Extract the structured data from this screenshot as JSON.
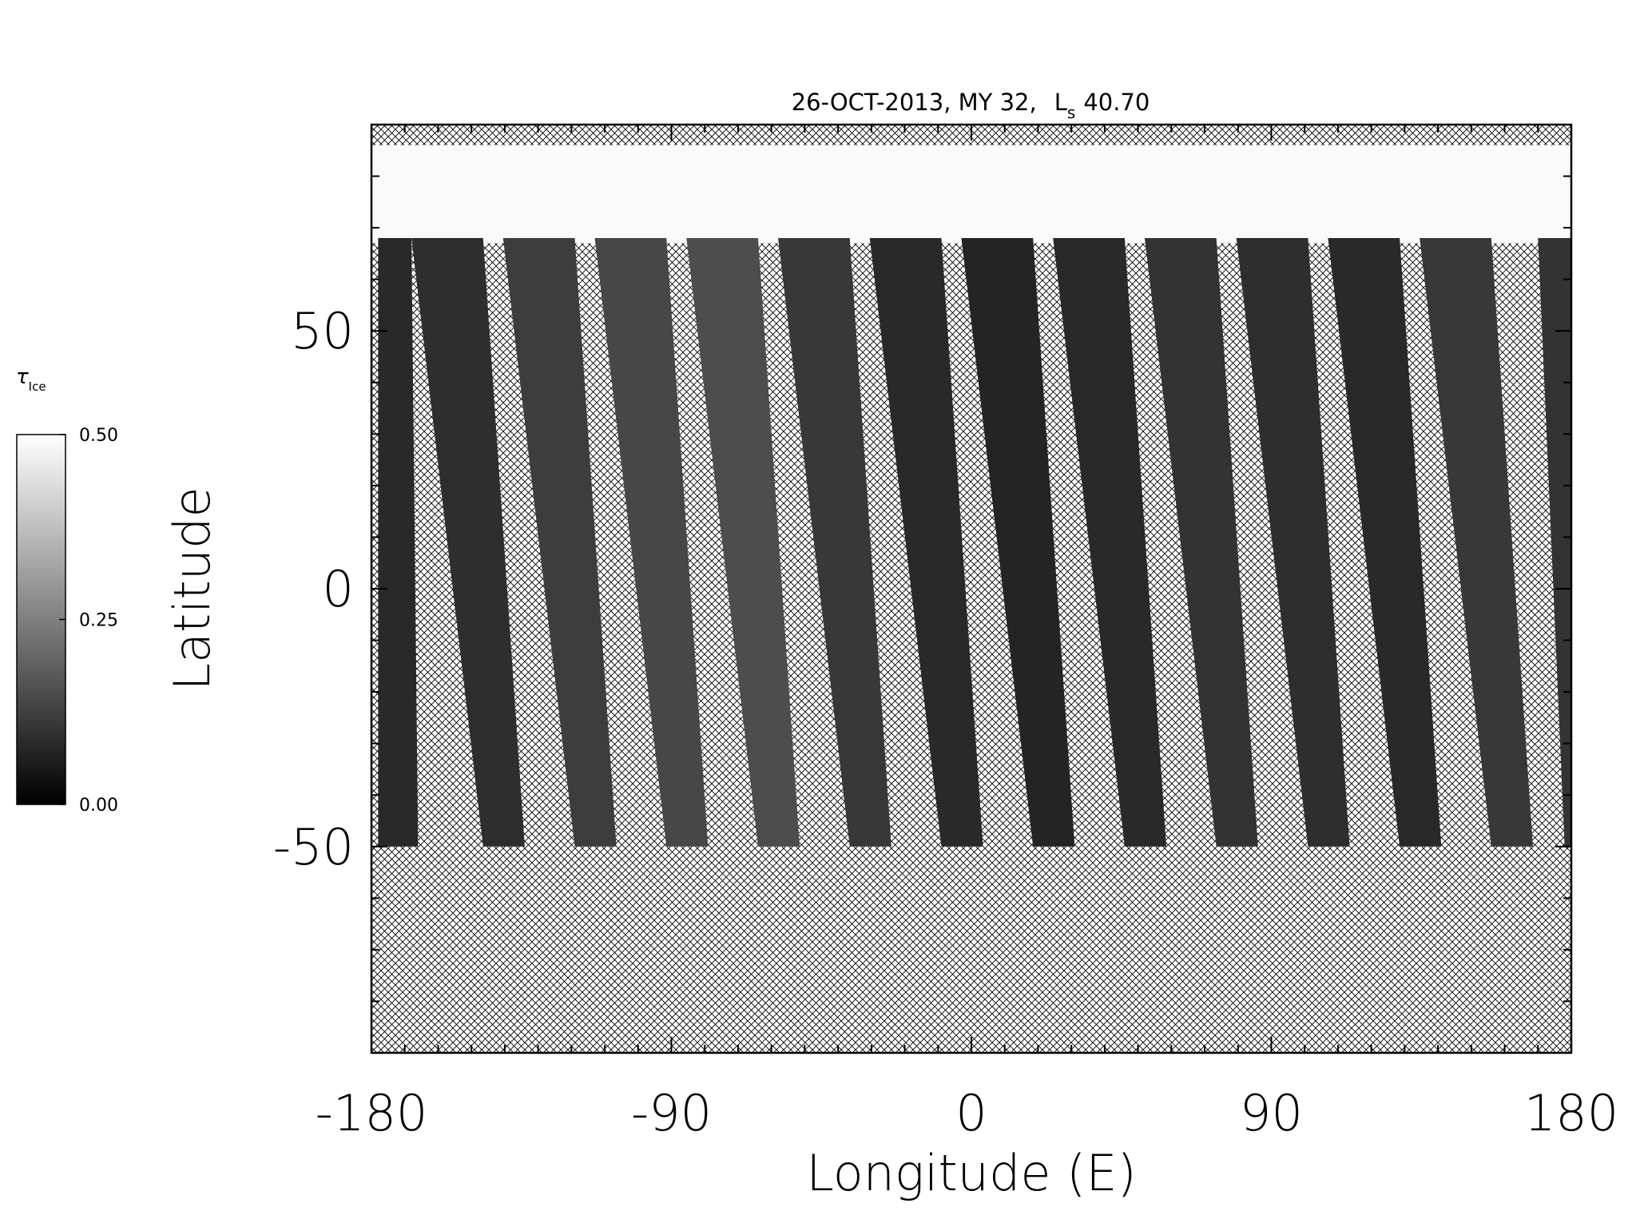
{
  "chart_data": {
    "type": "heatmap",
    "title": "26-OCT-2013, MY 32,",
    "ls": {
      "symbol": "L",
      "subscript": "s",
      "value": "40.70"
    },
    "xlabel": "Longitude (E)",
    "ylabel": "Latitude",
    "xlim": [
      -180,
      180
    ],
    "xticks": [
      -180,
      -90,
      0,
      90,
      180
    ],
    "xminorticks": [
      -170,
      -160,
      -150,
      -140,
      -130,
      -120,
      -110,
      -100,
      -80,
      -70,
      -60,
      -50,
      -40,
      -30,
      -20,
      -10,
      10,
      20,
      30,
      40,
      50,
      60,
      70,
      80,
      100,
      110,
      120,
      130,
      140,
      150,
      160,
      170
    ],
    "ylim": [
      -90,
      90
    ],
    "yticks": [
      -50,
      0,
      50
    ],
    "yminorticks": [
      -80,
      -70,
      -60,
      -40,
      -30,
      -20,
      -10,
      10,
      20,
      30,
      40,
      60,
      70,
      80
    ],
    "no_data_pattern": "crosshatch",
    "colorbar": {
      "symbol": "τ",
      "subscript": "Ice",
      "lim": [
        0,
        0.5
      ],
      "ticks": [
        {
          "value": 0,
          "label": "0.00"
        },
        {
          "value": 0.25,
          "label": "0.25"
        },
        {
          "value": 0.5,
          "label": "0.50"
        }
      ],
      "colors": [
        "#000000",
        "#ffffff"
      ]
    },
    "polar_cap": {
      "lat": [
        67,
        86
      ],
      "tau": 0.49
    },
    "swath_lat": [
      -50,
      68
    ],
    "swaths": [
      {
        "lon_top": [
          -178,
          -168
        ],
        "lon_bottom": [
          -178,
          -166
        ],
        "tau": 0.08
      },
      {
        "lon_top": [
          -168,
          -146.5
        ],
        "lon_bottom": [
          -146.5,
          -134
        ],
        "tau": 0.09
      },
      {
        "lon_top": [
          -140.5,
          -119
        ],
        "lon_bottom": [
          -119,
          -106.5
        ],
        "tau": 0.12
      },
      {
        "lon_top": [
          -113,
          -91.5
        ],
        "lon_bottom": [
          -91.5,
          -79
        ],
        "tau": 0.14
      },
      {
        "lon_top": [
          -85.5,
          -64
        ],
        "lon_bottom": [
          -64,
          -51.5
        ],
        "tau": 0.15
      },
      {
        "lon_top": [
          -58,
          -36.5
        ],
        "lon_bottom": [
          -36.5,
          -24
        ],
        "tau": 0.11
      },
      {
        "lon_top": [
          -30.5,
          -9
        ],
        "lon_bottom": [
          -9,
          3.5
        ],
        "tau": 0.08
      },
      {
        "lon_top": [
          -3,
          18.5
        ],
        "lon_bottom": [
          18.5,
          31
        ],
        "tau": 0.07
      },
      {
        "lon_top": [
          24.5,
          46
        ],
        "lon_bottom": [
          46,
          58.5
        ],
        "tau": 0.08
      },
      {
        "lon_top": [
          52,
          73.5
        ],
        "lon_bottom": [
          73.5,
          86
        ],
        "tau": 0.1
      },
      {
        "lon_top": [
          79.5,
          101
        ],
        "lon_bottom": [
          101,
          113.5
        ],
        "tau": 0.09
      },
      {
        "lon_top": [
          107,
          128.5
        ],
        "lon_bottom": [
          128.5,
          141
        ],
        "tau": 0.08
      },
      {
        "lon_top": [
          134.5,
          156
        ],
        "lon_bottom": [
          156,
          168.5
        ],
        "tau": 0.11
      },
      {
        "lon_top": [
          170,
          180
        ],
        "lon_bottom": [
          178,
          180
        ],
        "tau": 0.1
      }
    ]
  }
}
